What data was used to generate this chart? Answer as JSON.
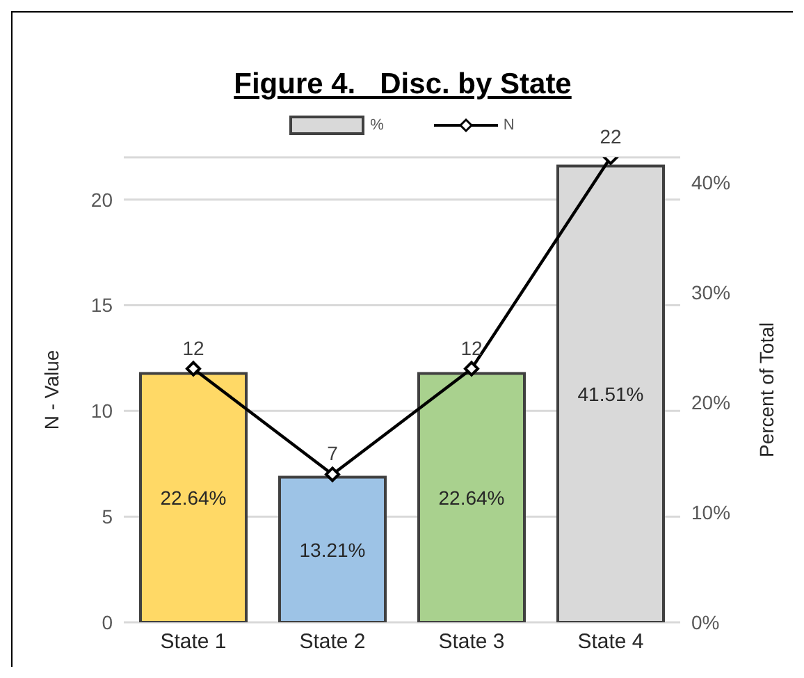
{
  "chart_data": {
    "type": "bar",
    "title": "Figure 4.   Disc. by State",
    "ylabel": "N - Value",
    "y2label": "Percent of Total",
    "categories": [
      "State 1",
      "State 2",
      "State 3",
      "State 4"
    ],
    "series": [
      {
        "name": "%",
        "axis": "y2",
        "color": "#d9d9d9",
        "colors": [
          "#ffd966",
          "#9dc3e6",
          "#a9d18e",
          "#d9d9d9"
        ],
        "values": [
          22.64,
          13.21,
          22.64,
          41.51
        ],
        "value_labels": [
          "22.64%",
          "13.21%",
          "22.64%",
          "41.51%"
        ]
      },
      {
        "name": "N",
        "type": "line",
        "color": "#000000",
        "values": [
          12,
          7,
          12,
          22
        ],
        "value_labels": [
          "12",
          "7",
          "12",
          "22"
        ],
        "marker": "diamond"
      }
    ],
    "ylim": [
      0,
      22
    ],
    "yticks": [
      0,
      5,
      10,
      15,
      20
    ],
    "y2lim": [
      0,
      42.3
    ],
    "y2ticks": [
      {
        "value": 0,
        "label": "0%"
      },
      {
        "value": 10,
        "label": "10%"
      },
      {
        "value": 20,
        "label": "20%"
      },
      {
        "value": 30,
        "label": "30%"
      },
      {
        "value": 40,
        "label": "40%"
      }
    ],
    "grid": "y",
    "legend": "top"
  }
}
